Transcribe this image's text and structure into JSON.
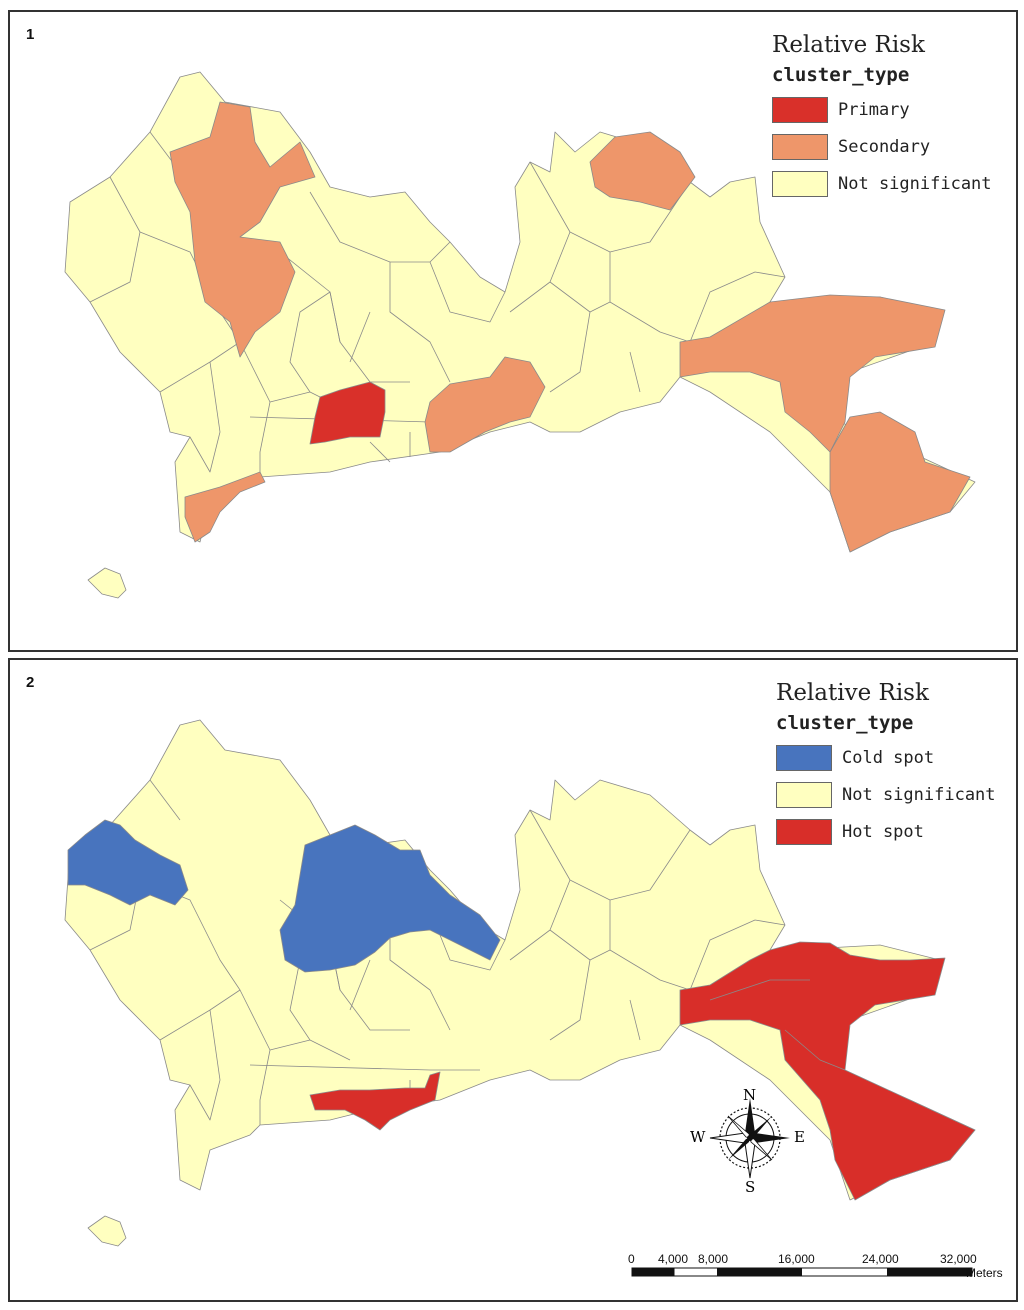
{
  "colors": {
    "primary": "#D9302A",
    "secondary": "#EE966A",
    "not_significant": "#FFFFC0",
    "cold_spot": "#4874BE",
    "hot_spot": "#D82E29",
    "boundary": "#8a8a8a"
  },
  "panel1": {
    "number": "1",
    "legend": {
      "title": "Relative Risk",
      "subtitle": "cluster_type",
      "items": [
        {
          "label": "Primary",
          "color": "#D9302A"
        },
        {
          "label": "Secondary",
          "color": "#EE966A"
        },
        {
          "label": "Not significant",
          "color": "#FFFFC0"
        }
      ]
    }
  },
  "panel2": {
    "number": "2",
    "legend": {
      "title": "Relative Risk",
      "subtitle": "cluster_type",
      "items": [
        {
          "label": "Cold spot",
          "color": "#4874BE"
        },
        {
          "label": "Not significant",
          "color": "#FFFFC0"
        },
        {
          "label": "Hot spot",
          "color": "#D82E29"
        }
      ]
    },
    "compass": {
      "n": "N",
      "s": "S",
      "e": "E",
      "w": "W"
    },
    "scale": {
      "ticks": [
        "0",
        "4,000",
        "8,000",
        "16,000",
        "24,000",
        "32,000"
      ],
      "unit": "Meters"
    }
  }
}
